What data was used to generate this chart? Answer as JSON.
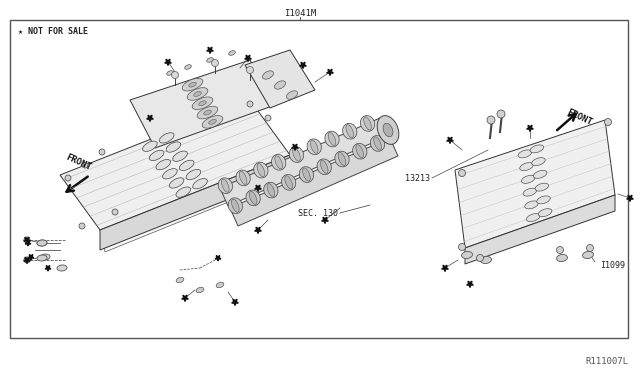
{
  "bg_color": "#ffffff",
  "border_color": "#666666",
  "text_color": "#222222",
  "title_above": "I1041M",
  "watermark": "★ NOT FOR SALE",
  "part_number_bottom_right": "R111007L",
  "label_sec130": "SEC. 130",
  "label_13213": "13213",
  "label_I1099": "I1099",
  "label_front_left": "FRONT",
  "label_front_right": "FRONT",
  "fig_width": 6.4,
  "fig_height": 3.72,
  "dpi": 100
}
